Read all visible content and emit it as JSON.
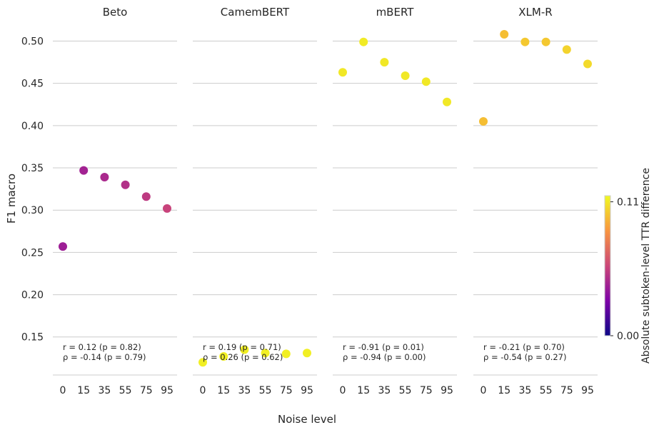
{
  "chart_data": {
    "type": "scatter",
    "facet_labels": [
      "Beto",
      "CamemBERT",
      "mBERT",
      "XLM-R"
    ],
    "x_ticks": [
      "0",
      "15",
      "35",
      "55",
      "75",
      "95"
    ],
    "y_ticks": [
      "0.15",
      "0.20",
      "0.25",
      "0.30",
      "0.35",
      "0.40",
      "0.45",
      "0.50"
    ],
    "xlabel": "Noise level",
    "ylabel": "F1 macro",
    "ylim": [
      0.105,
      0.53
    ],
    "grid": "horizontal",
    "colorbar": {
      "label": "Absolute subtoken-level TTR difference",
      "ticks": [
        "0.00",
        "0.11"
      ],
      "range": [
        0.0,
        0.115
      ],
      "colormap": [
        "#0d0887",
        "#7e03a8",
        "#cc4778",
        "#f89540",
        "#f0f921"
      ]
    },
    "facets": [
      {
        "name": "Beto",
        "points": [
          {
            "x": "0",
            "y": 0.257,
            "c": 0.04
          },
          {
            "x": "15",
            "y": 0.347,
            "c": 0.042
          },
          {
            "x": "35",
            "y": 0.339,
            "c": 0.045
          },
          {
            "x": "55",
            "y": 0.33,
            "c": 0.048
          },
          {
            "x": "75",
            "y": 0.316,
            "c": 0.052
          },
          {
            "x": "95",
            "y": 0.302,
            "c": 0.056
          }
        ],
        "stats": [
          "r = 0.12 (p = 0.82)",
          "ρ = -0.14 (p = 0.79)"
        ]
      },
      {
        "name": "CamemBERT",
        "points": [
          {
            "x": "0",
            "y": 0.12,
            "c": 0.112
          },
          {
            "x": "15",
            "y": 0.127,
            "c": 0.112
          },
          {
            "x": "35",
            "y": 0.135,
            "c": 0.112
          },
          {
            "x": "55",
            "y": 0.131,
            "c": 0.112
          },
          {
            "x": "75",
            "y": 0.13,
            "c": 0.112
          },
          {
            "x": "95",
            "y": 0.131,
            "c": 0.112
          }
        ],
        "stats": [
          "r = 0.19 (p = 0.71)",
          "ρ = 0.26 (p = 0.62)"
        ]
      },
      {
        "name": "mBERT",
        "points": [
          {
            "x": "0",
            "y": 0.463,
            "c": 0.11
          },
          {
            "x": "15",
            "y": 0.499,
            "c": 0.111
          },
          {
            "x": "35",
            "y": 0.475,
            "c": 0.11
          },
          {
            "x": "55",
            "y": 0.459,
            "c": 0.11
          },
          {
            "x": "75",
            "y": 0.452,
            "c": 0.11
          },
          {
            "x": "95",
            "y": 0.428,
            "c": 0.11
          }
        ],
        "stats": [
          "r = -0.91 (p = 0.01)",
          "ρ = -0.94 (p = 0.00)"
        ]
      },
      {
        "name": "XLM-R",
        "points": [
          {
            "x": "0",
            "y": 0.405,
            "c": 0.098
          },
          {
            "x": "15",
            "y": 0.508,
            "c": 0.098
          },
          {
            "x": "35",
            "y": 0.499,
            "c": 0.101
          },
          {
            "x": "55",
            "y": 0.499,
            "c": 0.101
          },
          {
            "x": "75",
            "y": 0.49,
            "c": 0.104
          },
          {
            "x": "95",
            "y": 0.473,
            "c": 0.106
          }
        ],
        "stats": [
          "r = -0.21 (p = 0.70)",
          "ρ = -0.54 (p = 0.27)"
        ]
      }
    ]
  }
}
